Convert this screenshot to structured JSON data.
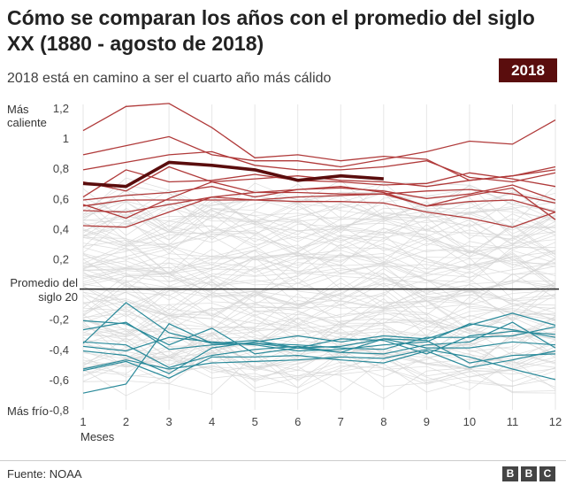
{
  "header": {
    "title": "Cómo se comparan los años con el promedio del siglo XX (1880 - agosto de 2018)",
    "subtitle": "2018 está en camino a ser el cuarto año más cálido",
    "badge": "2018"
  },
  "footer": {
    "source": "Fuente: NOAA",
    "logo": [
      "B",
      "B",
      "C"
    ]
  },
  "colors": {
    "background_lines": "#d4d4d4",
    "warm_lines": "#b03a3a",
    "cool_lines": "#2a8a9a",
    "highlight": "#5a0d0d",
    "baseline": "#222222"
  },
  "chart_data": {
    "type": "line",
    "xlabel": "Meses",
    "x": [
      1,
      2,
      3,
      4,
      5,
      6,
      7,
      8,
      9,
      10,
      11,
      12
    ],
    "ylim": [
      -0.8,
      1.2
    ],
    "yticks": [
      {
        "value": 1.2,
        "label": "1,2"
      },
      {
        "value": 1.0,
        "label": "1"
      },
      {
        "value": 0.8,
        "label": "0,8"
      },
      {
        "value": 0.6,
        "label": "0,6"
      },
      {
        "value": 0.4,
        "label": "0,4"
      },
      {
        "value": 0.2,
        "label": "0,2"
      },
      {
        "value": -0.2,
        "label": "-0,2"
      },
      {
        "value": -0.4,
        "label": "-0,4"
      },
      {
        "value": -0.6,
        "label": "-0,6"
      },
      {
        "value": -0.8,
        "label": "-0,8"
      }
    ],
    "annotations": {
      "top": "Más caliente",
      "baseline": "Promedio del siglo 20",
      "bottom": "Más frío"
    },
    "grid": "vertical",
    "background_series": {
      "count": 110,
      "range": [
        -0.6,
        0.6
      ]
    },
    "warm_series": [
      {
        "values": [
          1.05,
          1.21,
          1.23,
          1.07,
          0.87,
          0.89,
          0.85,
          0.88,
          0.86,
          0.72,
          0.75,
          0.79
        ]
      },
      {
        "values": [
          0.89,
          0.95,
          1.01,
          0.89,
          0.85,
          0.85,
          0.81,
          0.86,
          0.91,
          0.98,
          0.96,
          1.12
        ]
      },
      {
        "values": [
          0.79,
          0.84,
          0.89,
          0.91,
          0.82,
          0.79,
          0.79,
          0.81,
          0.85,
          0.74,
          0.71,
          0.77
        ]
      },
      {
        "values": [
          0.71,
          0.65,
          0.81,
          0.71,
          0.73,
          0.75,
          0.72,
          0.71,
          0.68,
          0.72,
          0.75,
          0.81
        ]
      },
      {
        "values": [
          0.61,
          0.79,
          0.71,
          0.72,
          0.76,
          0.72,
          0.71,
          0.69,
          0.7,
          0.77,
          0.73,
          0.68
        ]
      },
      {
        "values": [
          0.59,
          0.62,
          0.64,
          0.68,
          0.61,
          0.66,
          0.67,
          0.65,
          0.6,
          0.63,
          0.69,
          0.59
        ]
      },
      {
        "values": [
          0.56,
          0.47,
          0.6,
          0.71,
          0.64,
          0.66,
          0.68,
          0.64,
          0.55,
          0.62,
          0.67,
          0.46
        ]
      },
      {
        "values": [
          0.55,
          0.59,
          0.59,
          0.59,
          0.59,
          0.61,
          0.62,
          0.63,
          0.65,
          0.66,
          0.63,
          0.57
        ]
      },
      {
        "values": [
          0.52,
          0.51,
          0.56,
          0.61,
          0.64,
          0.64,
          0.63,
          0.63,
          0.55,
          0.58,
          0.59,
          0.51
        ]
      },
      {
        "values": [
          0.42,
          0.41,
          0.51,
          0.61,
          0.59,
          0.58,
          0.58,
          0.57,
          0.51,
          0.47,
          0.41,
          0.51
        ]
      }
    ],
    "cool_series": [
      {
        "values": [
          -0.36,
          -0.09,
          -0.29,
          -0.36,
          -0.34,
          -0.39,
          -0.33,
          -0.34,
          -0.43,
          -0.31,
          -0.28,
          -0.3
        ]
      },
      {
        "values": [
          -0.41,
          -0.44,
          -0.56,
          -0.39,
          -0.35,
          -0.31,
          -0.35,
          -0.31,
          -0.33,
          -0.24,
          -0.16,
          -0.24
        ]
      },
      {
        "values": [
          -0.54,
          -0.48,
          -0.59,
          -0.45,
          -0.45,
          -0.44,
          -0.47,
          -0.49,
          -0.41,
          -0.52,
          -0.47,
          -0.41
        ]
      },
      {
        "values": [
          -0.21,
          -0.23,
          -0.37,
          -0.26,
          -0.43,
          -0.39,
          -0.42,
          -0.33,
          -0.39,
          -0.39,
          -0.35,
          -0.37
        ]
      },
      {
        "values": [
          -0.69,
          -0.63,
          -0.23,
          -0.36,
          -0.36,
          -0.39,
          -0.38,
          -0.33,
          -0.34,
          -0.49,
          -0.44,
          -0.43
        ]
      },
      {
        "values": [
          -0.38,
          -0.41,
          -0.32,
          -0.35,
          -0.37,
          -0.41,
          -0.4,
          -0.37,
          -0.35,
          -0.23,
          -0.27,
          -0.32
        ]
      },
      {
        "values": [
          -0.53,
          -0.47,
          -0.53,
          -0.49,
          -0.48,
          -0.47,
          -0.45,
          -0.46,
          -0.4,
          -0.45,
          -0.53,
          -0.6
        ]
      },
      {
        "values": [
          -0.27,
          -0.22,
          -0.4,
          -0.37,
          -0.36,
          -0.37,
          -0.39,
          -0.4,
          -0.32,
          -0.32,
          -0.31,
          -0.25
        ]
      },
      {
        "values": [
          -0.35,
          -0.37,
          -0.52,
          -0.44,
          -0.4,
          -0.38,
          -0.42,
          -0.43,
          -0.37,
          -0.35,
          -0.22,
          -0.39
        ]
      }
    ],
    "highlight_series": {
      "name": "2018",
      "values": [
        0.7,
        0.68,
        0.84,
        0.82,
        0.79,
        0.72,
        0.75,
        0.73
      ]
    }
  }
}
